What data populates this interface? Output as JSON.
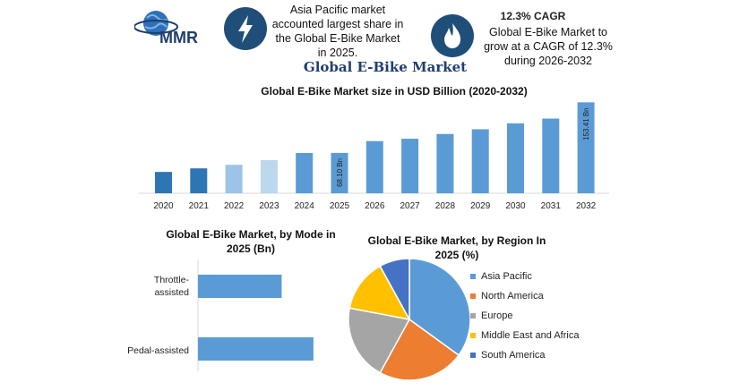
{
  "header": {
    "logo_text": "MMR",
    "info1": "Asia Pacific market accounted largest share in the Global E-Bike Market in 2025.",
    "info2_title": "12.3% CAGR",
    "info2": "Global E-Bike Market to grow at a CAGR of 12.3% during 2026-2032",
    "badge1_icon": "lightning-icon",
    "badge2_icon": "flame-icon"
  },
  "page_title": "Global E-Bike Market",
  "colors": {
    "navy": "#1f4e79",
    "bar": "#5b9bd5"
  },
  "chart_data": [
    {
      "type": "bar",
      "title": "Global E-Bike Market size in USD Billion (2020-2032)",
      "categories": [
        "2020",
        "2021",
        "2022",
        "2023",
        "2024",
        "2025",
        "2026",
        "2027",
        "2028",
        "2029",
        "2030",
        "2031",
        "2032"
      ],
      "values": [
        36,
        42,
        48,
        56,
        68,
        68.1,
        88,
        92,
        100,
        108,
        118,
        126,
        153.41
      ],
      "data_labels": {
        "2025": "68.10 Bn",
        "2032": "153.41 Bn"
      },
      "colors": [
        "#2e75b6",
        "#2e75b6",
        "#9dc3e6",
        "#bdd7ee",
        "#5b9bd5",
        "#5b9bd5",
        "#5b9bd5",
        "#5b9bd5",
        "#5b9bd5",
        "#5b9bd5",
        "#5b9bd5",
        "#5b9bd5",
        "#5b9bd5"
      ],
      "ylim": [
        0,
        160
      ]
    },
    {
      "type": "bar",
      "orientation": "horizontal",
      "title": "Global E-Bike Market, by Mode in 2025 (Bn)",
      "categories": [
        "Throttle-assisted",
        "Pedal-assisted"
      ],
      "values": [
        29,
        40
      ],
      "xlim": [
        0,
        45
      ]
    },
    {
      "type": "pie",
      "title": "Global E-Bike Market, by Region In 2025 (%)",
      "legend_position": "right",
      "slices": [
        {
          "label": "Asia Pacific",
          "value": 35,
          "color": "#5b9bd5"
        },
        {
          "label": "North America",
          "value": 23,
          "color": "#ed7d31"
        },
        {
          "label": "Europe",
          "value": 20,
          "color": "#a5a5a5"
        },
        {
          "label": "Middle East and Africa",
          "value": 14,
          "color": "#ffc000"
        },
        {
          "label": "South America",
          "value": 8,
          "color": "#4472c4"
        }
      ]
    }
  ]
}
